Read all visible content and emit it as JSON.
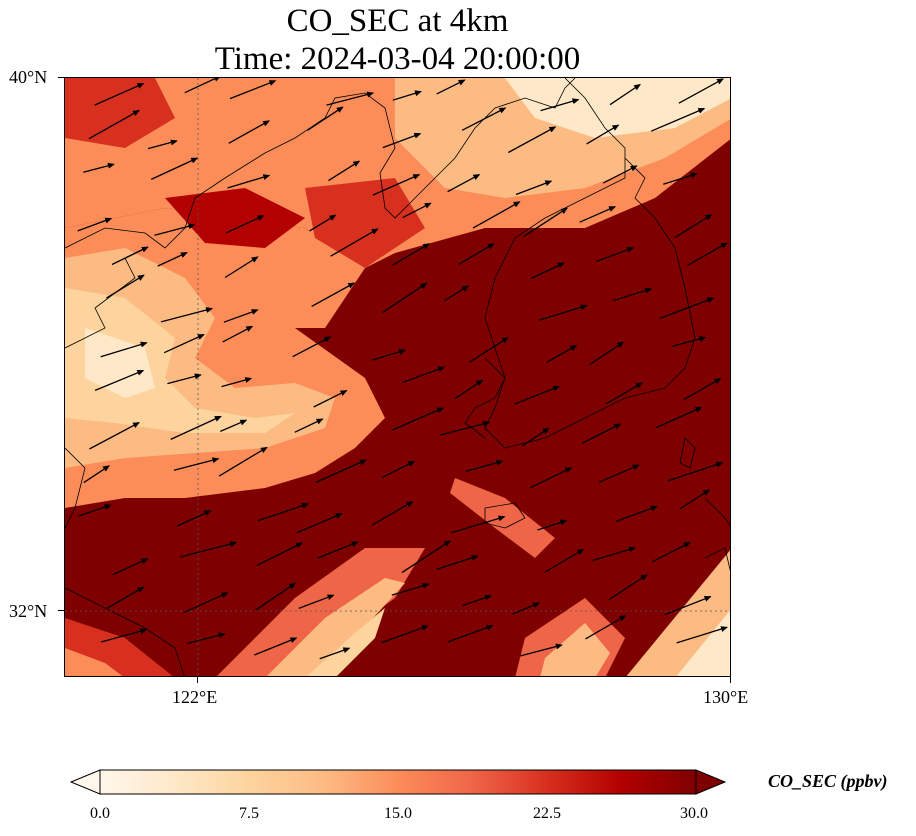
{
  "title": {
    "line1": "CO_SEC at 4km",
    "line2": "Time: 2024-03-04 20:00:00"
  },
  "map": {
    "lon_range": [
      118.7,
      130.0
    ],
    "lat_range": [
      31.6,
      40.0
    ],
    "lat_ticks": [
      {
        "value": 40,
        "label": "40°N"
      },
      {
        "value": 32,
        "label": "32°N"
      }
    ],
    "lon_ticks": [
      {
        "value": 122,
        "label": "122°E"
      },
      {
        "value": 130,
        "label": "130°E"
      }
    ],
    "gridlines": "dotted",
    "variable": "CO_SEC",
    "vectors": "wind arrows, predominantly westerly"
  },
  "colorbar": {
    "label": "CO_SEC (ppbv)",
    "min": 0.0,
    "max": 30.0,
    "ticks": [
      "0.0",
      "7.5",
      "15.0",
      "22.5",
      "30.0"
    ],
    "colormap": "OrRd",
    "extend": "both",
    "colors": [
      "#fff7ec",
      "#fee8c8",
      "#fdd49e",
      "#fdbb84",
      "#fc8d59",
      "#ef6548",
      "#d7301f",
      "#b30000",
      "#7f0000"
    ]
  }
}
